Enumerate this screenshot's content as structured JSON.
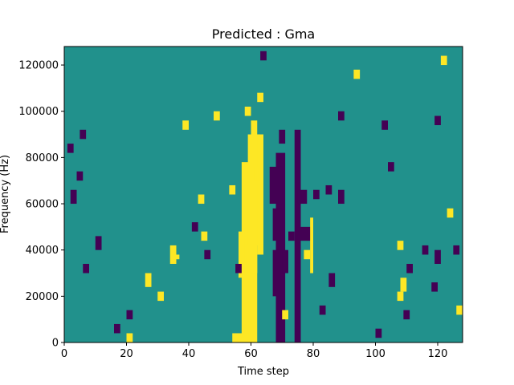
{
  "chart_data": {
    "type": "heatmap",
    "title": "Predicted : Gma",
    "xlabel": "Time step",
    "ylabel": "Frequency (Hz)",
    "xlim": [
      0,
      128
    ],
    "ylim": [
      0,
      128000
    ],
    "x_ticks": [
      0,
      20,
      40,
      60,
      80,
      100,
      120
    ],
    "y_ticks": [
      0,
      20000,
      40000,
      60000,
      80000,
      100000,
      120000
    ],
    "y_tick_labels": [
      "0",
      "20000",
      "40000",
      "60000",
      "80000",
      "100000",
      "120000"
    ],
    "grid": false,
    "colormap": "viridis",
    "colors": {
      "background": "#21918c",
      "high": "#fde725",
      "low": "#440154"
    },
    "cells": [
      [
        57,
        0,
        62,
        78,
        "high"
      ],
      [
        59,
        42,
        63,
        90,
        "high"
      ],
      [
        60,
        30,
        62,
        96,
        "high"
      ],
      [
        62,
        38,
        64,
        90,
        "high"
      ],
      [
        56,
        28,
        58,
        48,
        "high"
      ],
      [
        55,
        30,
        57,
        34,
        "low"
      ],
      [
        53,
        64,
        55,
        68,
        "high"
      ],
      [
        54,
        0,
        60,
        4,
        "high"
      ],
      [
        61,
        70,
        63,
        76,
        "high"
      ],
      [
        58,
        98,
        60,
        102,
        "high"
      ],
      [
        62,
        104,
        64,
        108,
        "high"
      ],
      [
        68,
        0,
        71,
        82,
        "low"
      ],
      [
        67,
        20,
        69,
        40,
        "low"
      ],
      [
        70,
        30,
        72,
        40,
        "low"
      ],
      [
        67,
        44,
        70,
        58,
        "low"
      ],
      [
        66,
        60,
        70,
        76,
        "low"
      ],
      [
        69,
        86,
        71,
        92,
        "low"
      ],
      [
        74,
        0,
        76,
        92,
        "low"
      ],
      [
        75,
        60,
        78,
        66,
        "low"
      ],
      [
        76,
        44,
        80,
        50,
        "low"
      ],
      [
        79,
        30,
        80,
        54,
        "high"
      ],
      [
        72,
        44,
        74,
        48,
        "low"
      ],
      [
        70,
        10,
        72,
        14,
        "high"
      ],
      [
        77,
        36,
        79,
        40,
        "high"
      ],
      [
        82,
        12,
        84,
        16,
        "low"
      ],
      [
        85,
        24,
        87,
        30,
        "low"
      ],
      [
        80,
        62,
        82,
        66,
        "low"
      ],
      [
        84,
        64,
        86,
        68,
        "low"
      ],
      [
        88,
        60,
        90,
        66,
        "low"
      ],
      [
        41,
        48,
        43,
        52,
        "low"
      ],
      [
        43,
        60,
        45,
        64,
        "high"
      ],
      [
        45,
        36,
        47,
        40,
        "low"
      ],
      [
        44,
        44,
        46,
        48,
        "high"
      ],
      [
        34,
        34,
        36,
        42,
        "high"
      ],
      [
        35,
        36,
        37,
        38,
        "high"
      ],
      [
        30,
        18,
        32,
        22,
        "high"
      ],
      [
        26,
        24,
        28,
        30,
        "high"
      ],
      [
        20,
        0,
        22,
        4,
        "high"
      ],
      [
        20,
        10,
        22,
        14,
        "low"
      ],
      [
        10,
        40,
        12,
        46,
        "low"
      ],
      [
        6,
        30,
        8,
        34,
        "low"
      ],
      [
        4,
        70,
        6,
        74,
        "low"
      ],
      [
        2,
        60,
        4,
        66,
        "low"
      ],
      [
        1,
        82,
        3,
        86,
        "low"
      ],
      [
        107,
        40,
        109,
        44,
        "high"
      ],
      [
        108,
        22,
        110,
        28,
        "high"
      ],
      [
        107,
        18,
        109,
        22,
        "high"
      ],
      [
        109,
        10,
        111,
        14,
        "low"
      ],
      [
        110,
        30,
        112,
        34,
        "low"
      ],
      [
        115,
        38,
        117,
        42,
        "low"
      ],
      [
        119,
        34,
        121,
        40,
        "low"
      ],
      [
        118,
        22,
        120,
        26,
        "low"
      ],
      [
        125,
        38,
        127,
        42,
        "low"
      ],
      [
        126,
        12,
        128,
        16,
        "high"
      ],
      [
        123,
        54,
        125,
        58,
        "high"
      ],
      [
        119,
        94,
        121,
        98,
        "low"
      ],
      [
        121,
        120,
        123,
        124,
        "high"
      ],
      [
        102,
        92,
        104,
        96,
        "low"
      ],
      [
        93,
        114,
        95,
        118,
        "high"
      ],
      [
        88,
        96,
        90,
        100,
        "low"
      ],
      [
        16,
        4,
        18,
        8,
        "low"
      ],
      [
        5,
        88,
        7,
        92,
        "low"
      ],
      [
        38,
        92,
        40,
        96,
        "high"
      ],
      [
        48,
        96,
        50,
        100,
        "high"
      ],
      [
        63,
        122,
        65,
        126,
        "low"
      ],
      [
        100,
        2,
        102,
        6,
        "low"
      ],
      [
        104,
        74,
        106,
        78,
        "low"
      ]
    ]
  }
}
